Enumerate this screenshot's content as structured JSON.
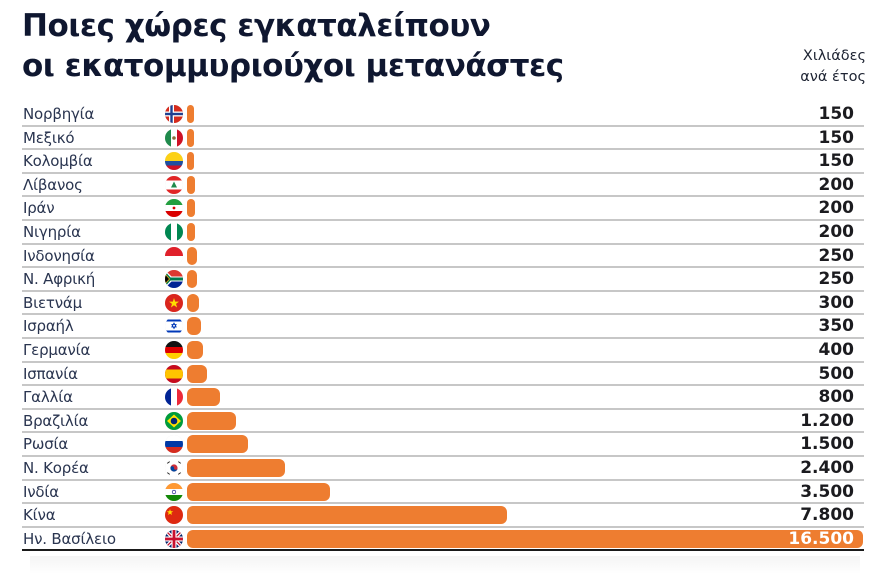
{
  "title": {
    "line1": "Ποιες χώρες εγκαταλείπουν",
    "line2": "οι εκατομμυριούχοι μετανάστες"
  },
  "unit": {
    "line1": "Χιλιάδες",
    "line2": "ανά έτος"
  },
  "colors": {
    "bar": "#ee7d30",
    "title": "#0f1730",
    "separator": "#c7c7c7"
  },
  "rows": [
    {
      "country": "Νορβηγία",
      "flag": "norway-flag-icon",
      "value": 150,
      "display": "150"
    },
    {
      "country": "Μεξικό",
      "flag": "mexico-flag-icon",
      "value": 150,
      "display": "150"
    },
    {
      "country": "Κολομβία",
      "flag": "colombia-flag-icon",
      "value": 150,
      "display": "150"
    },
    {
      "country": "Λίβανος",
      "flag": "lebanon-flag-icon",
      "value": 200,
      "display": "200"
    },
    {
      "country": "Ιράν",
      "flag": "iran-flag-icon",
      "value": 200,
      "display": "200"
    },
    {
      "country": "Νιγηρία",
      "flag": "nigeria-flag-icon",
      "value": 200,
      "display": "200"
    },
    {
      "country": "Ινδονησία",
      "flag": "indonesia-flag-icon",
      "value": 250,
      "display": "250"
    },
    {
      "country": "Ν. Αφρική",
      "flag": "south-africa-flag-icon",
      "value": 250,
      "display": "250"
    },
    {
      "country": "Βιετνάμ",
      "flag": "vietnam-flag-icon",
      "value": 300,
      "display": "300"
    },
    {
      "country": "Ισραήλ",
      "flag": "israel-flag-icon",
      "value": 350,
      "display": "350"
    },
    {
      "country": "Γερμανία",
      "flag": "germany-flag-icon",
      "value": 400,
      "display": "400"
    },
    {
      "country": "Ισπανία",
      "flag": "spain-flag-icon",
      "value": 500,
      "display": "500"
    },
    {
      "country": "Γαλλία",
      "flag": "france-flag-icon",
      "value": 800,
      "display": "800"
    },
    {
      "country": "Βραζιλία",
      "flag": "brazil-flag-icon",
      "value": 1200,
      "display": "1.200"
    },
    {
      "country": "Ρωσία",
      "flag": "russia-flag-icon",
      "value": 1500,
      "display": "1.500"
    },
    {
      "country": "Ν. Κορέα",
      "flag": "south-korea-flag-icon",
      "value": 2400,
      "display": "2.400"
    },
    {
      "country": "Ινδία",
      "flag": "india-flag-icon",
      "value": 3500,
      "display": "3.500"
    },
    {
      "country": "Κίνα",
      "flag": "china-flag-icon",
      "value": 7800,
      "display": "7.800"
    },
    {
      "country": "Ην. Βασίλειο",
      "flag": "uk-flag-icon",
      "value": 16500,
      "display": "16.500"
    }
  ],
  "chart_data": {
    "type": "bar",
    "orientation": "horizontal",
    "title": "Ποιες χώρες εγκαταλείπουν οι εκατομμυριούχοι μετανάστες",
    "unit_label": "Χιλιάδες ανά έτος",
    "xlabel": "",
    "ylabel": "",
    "grid": false,
    "legend": null,
    "categories": [
      "Νορβηγία",
      "Μεξικό",
      "Κολομβία",
      "Λίβανος",
      "Ιράν",
      "Νιγηρία",
      "Ινδονησία",
      "Ν. Αφρική",
      "Βιετνάμ",
      "Ισραήλ",
      "Γερμανία",
      "Ισπανία",
      "Γαλλία",
      "Βραζιλία",
      "Ρωσία",
      "Ν. Κορέα",
      "Ινδία",
      "Κίνα",
      "Ην. Βασίλειο"
    ],
    "values": [
      150,
      150,
      150,
      200,
      200,
      200,
      250,
      250,
      300,
      350,
      400,
      500,
      800,
      1200,
      1500,
      2400,
      3500,
      7800,
      16500
    ],
    "value_labels": [
      "150",
      "150",
      "150",
      "200",
      "200",
      "200",
      "250",
      "250",
      "300",
      "350",
      "400",
      "500",
      "800",
      "1.200",
      "1.500",
      "2.400",
      "3.500",
      "7.800",
      "16.500"
    ],
    "xlim": [
      0,
      16500
    ],
    "bar_color": "#ee7d30"
  }
}
